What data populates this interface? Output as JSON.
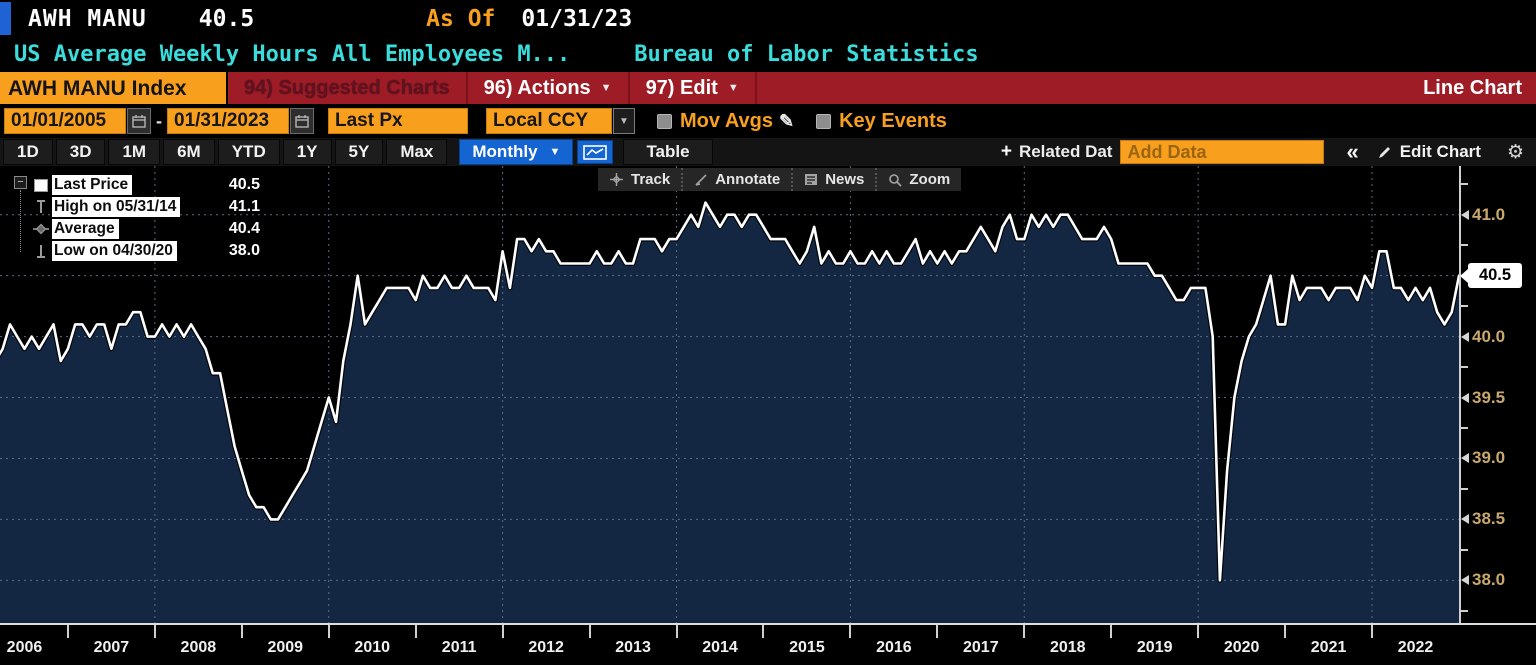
{
  "header": {
    "ticker": "AWH MANU",
    "last_value": "40.5",
    "as_of_label": "As Of",
    "as_of_date": "01/31/23",
    "description": "US Average Weekly Hours All Employees M...",
    "source": "Bureau of Labor Statistics"
  },
  "menu_bar": {
    "security_button": "AWH MANU Index",
    "suggested_charts": "94) Suggested Charts",
    "actions": "96) Actions",
    "edit": "97) Edit",
    "chart_type": "Line Chart"
  },
  "controls": {
    "date_from": "01/01/2005",
    "date_to": "01/31/2023",
    "dash": "-",
    "field": "Last Px",
    "currency": "Local CCY",
    "mov_avgs": {
      "label": "Mov Avgs",
      "checked": false
    },
    "key_events": {
      "label": "Key Events",
      "checked": false
    }
  },
  "toolbar": {
    "ranges": [
      "1D",
      "3D",
      "1M",
      "6M",
      "YTD",
      "1Y",
      "5Y",
      "Max"
    ],
    "period": "Monthly",
    "table_label": "Table",
    "related_data_label": "Related Dat",
    "add_data_placeholder": "Add Data",
    "collapse_glyph": "«",
    "edit_chart_label": "Edit Chart"
  },
  "chart_tools": [
    {
      "icon": "track-icon",
      "label": "Track"
    },
    {
      "icon": "annotate-icon",
      "label": "Annotate"
    },
    {
      "icon": "news-icon",
      "label": "News"
    },
    {
      "icon": "zoom-icon",
      "label": "Zoom"
    }
  ],
  "legend": {
    "items": [
      {
        "marker": "square",
        "label": "Last Price",
        "value": "40.5"
      },
      {
        "marker": "high",
        "label": "High on 05/31/14",
        "value": "41.1"
      },
      {
        "marker": "average",
        "label": "Average",
        "value": "40.4"
      },
      {
        "marker": "low",
        "label": "Low on 04/30/20",
        "value": "38.0"
      }
    ]
  },
  "chart_data": {
    "type": "area",
    "title": "US Average Weekly Hours All Employees Manufacturing",
    "series_name": "AWH MANU Index - Last Px",
    "frequency": "monthly",
    "x_start": "2006-03",
    "x_end": "2023-01",
    "values": [
      39.8,
      39.9,
      40.1,
      40.0,
      39.9,
      40.0,
      39.9,
      40.0,
      40.1,
      39.8,
      39.9,
      40.1,
      40.1,
      40.0,
      40.1,
      40.1,
      39.9,
      40.1,
      40.1,
      40.2,
      40.2,
      40.0,
      40.0,
      40.1,
      40.0,
      40.1,
      40.0,
      40.1,
      40.0,
      39.9,
      39.7,
      39.7,
      39.4,
      39.1,
      38.9,
      38.7,
      38.6,
      38.6,
      38.5,
      38.5,
      38.6,
      38.7,
      38.8,
      38.9,
      39.1,
      39.3,
      39.5,
      39.3,
      39.8,
      40.1,
      40.5,
      40.1,
      40.2,
      40.3,
      40.4,
      40.4,
      40.4,
      40.4,
      40.3,
      40.5,
      40.4,
      40.4,
      40.5,
      40.4,
      40.4,
      40.5,
      40.4,
      40.4,
      40.4,
      40.3,
      40.7,
      40.4,
      40.8,
      40.8,
      40.7,
      40.8,
      40.7,
      40.7,
      40.6,
      40.6,
      40.6,
      40.6,
      40.6,
      40.7,
      40.6,
      40.6,
      40.7,
      40.6,
      40.6,
      40.8,
      40.8,
      40.8,
      40.7,
      40.8,
      40.8,
      40.9,
      41.0,
      40.9,
      41.1,
      41.0,
      40.9,
      41.0,
      41.0,
      40.9,
      41.0,
      41.0,
      40.9,
      40.8,
      40.8,
      40.8,
      40.7,
      40.6,
      40.7,
      40.9,
      40.6,
      40.7,
      40.6,
      40.6,
      40.7,
      40.6,
      40.6,
      40.7,
      40.6,
      40.7,
      40.6,
      40.6,
      40.7,
      40.8,
      40.6,
      40.7,
      40.6,
      40.7,
      40.6,
      40.7,
      40.7,
      40.8,
      40.9,
      40.8,
      40.7,
      40.9,
      41.0,
      40.8,
      40.8,
      41.0,
      40.9,
      41.0,
      40.9,
      41.0,
      41.0,
      40.9,
      40.8,
      40.8,
      40.8,
      40.9,
      40.8,
      40.6,
      40.6,
      40.6,
      40.6,
      40.6,
      40.5,
      40.5,
      40.4,
      40.3,
      40.3,
      40.4,
      40.4,
      40.4,
      40.0,
      38.0,
      38.9,
      39.5,
      39.8,
      40.0,
      40.1,
      40.3,
      40.5,
      40.1,
      40.1,
      40.5,
      40.3,
      40.4,
      40.4,
      40.4,
      40.3,
      40.4,
      40.4,
      40.4,
      40.3,
      40.5,
      40.4,
      40.7,
      40.7,
      40.4,
      40.4,
      40.3,
      40.4,
      40.3,
      40.4,
      40.2,
      40.1,
      40.2,
      40.5
    ],
    "stats": {
      "last_price": 40.5,
      "high": 41.1,
      "high_date": "05/31/14",
      "average": 40.4,
      "low": 38.0,
      "low_date": "04/30/20"
    },
    "ylim": [
      37.65,
      41.4
    ],
    "yticks": [
      41.0,
      40.5,
      40.0,
      39.5,
      39.0,
      38.5,
      38.0
    ],
    "ytick_labels": [
      "41.0",
      "40.5",
      "40.0",
      "39.5",
      "39.0",
      "38.5",
      "38.0"
    ],
    "last_price_label": "40.5",
    "xticks_years": [
      2006,
      2007,
      2008,
      2009,
      2010,
      2011,
      2012,
      2013,
      2014,
      2015,
      2016,
      2017,
      2018,
      2019,
      2020,
      2021,
      2022
    ],
    "grid": "dotted",
    "gridline_years": [
      2008,
      2010,
      2012,
      2014,
      2016,
      2018,
      2020,
      2022
    ],
    "colors": {
      "line": "#ffffff",
      "fill": "#132742",
      "grid": "#5d6b80",
      "axis_label": "#c9a86d",
      "accent_amber": "#f8a01e",
      "menu_red": "#9d1c26",
      "button_blue": "#1464d2",
      "cyan": "#3adcdc"
    }
  }
}
